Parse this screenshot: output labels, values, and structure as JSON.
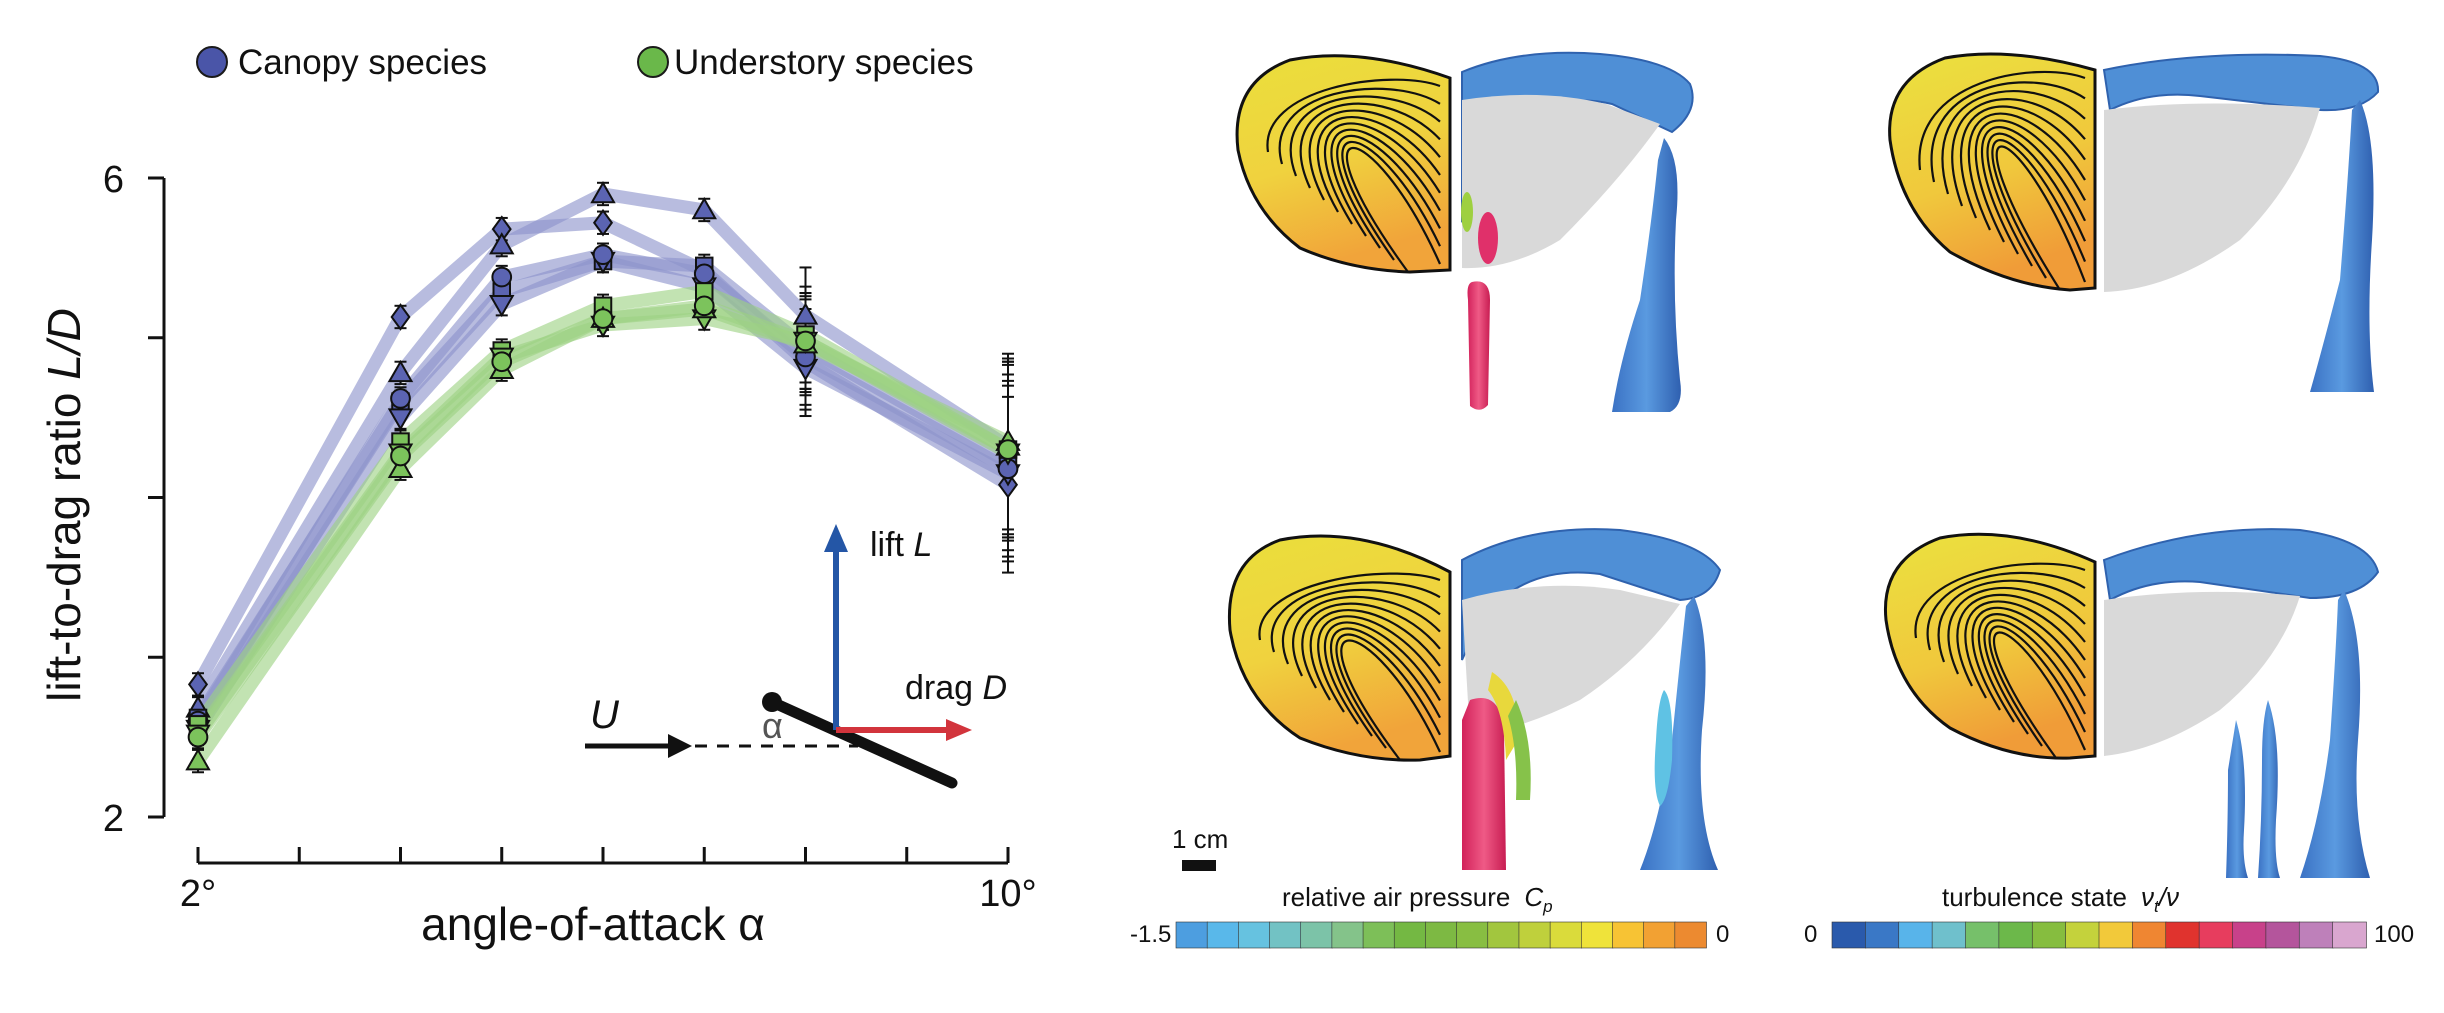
{
  "chart_data": {
    "type": "line",
    "title": "",
    "xlabel": "angle-of-attack α",
    "ylabel_main": "lift-to-drag ratio ",
    "ylabel_italic": "L/D",
    "x_ticks": [
      2,
      3,
      4,
      5,
      6,
      7,
      8,
      9,
      10
    ],
    "x_tick_labels": {
      "2": "2°",
      "10": "10°"
    },
    "y_ticks": [
      2,
      3,
      4,
      5,
      6
    ],
    "y_tick_labels": {
      "2": "2",
      "6": "6"
    },
    "xlim": [
      2,
      10
    ],
    "ylim": [
      2,
      6
    ],
    "grid": false,
    "legend": {
      "position": "top",
      "entries": [
        {
          "label": "Canopy species",
          "color": "#4a55a8"
        },
        {
          "label": "Understory species",
          "color": "#6ab84a"
        }
      ]
    },
    "x": [
      2,
      4,
      5,
      6,
      7,
      8,
      10
    ],
    "series": [
      {
        "group": "canopy",
        "marker": "diamond",
        "values": [
          2.83,
          5.13,
          5.68,
          5.72,
          5.42,
          4.85,
          4.08
        ]
      },
      {
        "group": "canopy",
        "marker": "triangle-up",
        "values": [
          2.68,
          4.78,
          5.58,
          5.9,
          5.8,
          5.14,
          4.32
        ]
      },
      {
        "group": "canopy",
        "marker": "square",
        "values": [
          2.62,
          4.6,
          5.29,
          5.48,
          5.45,
          4.94,
          4.22
        ]
      },
      {
        "group": "canopy",
        "marker": "triangle-down",
        "values": [
          2.55,
          4.5,
          5.21,
          5.48,
          5.32,
          4.81,
          4.15
        ]
      },
      {
        "group": "canopy",
        "marker": "circle",
        "values": [
          2.6,
          4.62,
          5.38,
          5.52,
          5.4,
          4.88,
          4.18
        ]
      },
      {
        "group": "understory",
        "marker": "square",
        "values": [
          2.58,
          4.35,
          4.92,
          5.2,
          5.29,
          5.02,
          4.3
        ]
      },
      {
        "group": "understory",
        "marker": "triangle-down",
        "values": [
          2.52,
          4.28,
          4.88,
          5.08,
          5.12,
          4.98,
          4.28
        ]
      },
      {
        "group": "understory",
        "marker": "triangle-up",
        "values": [
          2.35,
          4.18,
          4.8,
          5.12,
          5.18,
          4.96,
          4.35
        ]
      },
      {
        "group": "understory",
        "marker": "circle",
        "values": [
          2.5,
          4.26,
          4.85,
          5.12,
          5.2,
          4.98,
          4.3
        ]
      }
    ],
    "series_colors": {
      "canopy": "#8c93cc",
      "understory": "#9dd282"
    },
    "marker_colors": {
      "canopy": "#5b64b2",
      "understory": "#7cc35c"
    }
  },
  "inset": {
    "velocity_label": "U",
    "alpha_label": "α",
    "lift_prefix": "lift ",
    "lift_symbol": "L",
    "drag_prefix": "drag ",
    "drag_symbol": "D",
    "lift_color": "#2456a6",
    "drag_color": "#d2343c"
  },
  "scale_bar_label": "1 cm",
  "colorbar_pressure": {
    "title": "relative air pressure",
    "symbol": "C",
    "symbol_sub": "p",
    "min_label": "-1.5",
    "max_label": "0",
    "colors": [
      "#4d9ee0",
      "#59b8ea",
      "#66c2e0",
      "#72c2c4",
      "#7cc3a8",
      "#84c38a",
      "#7dbf58",
      "#74b843",
      "#7db943",
      "#88be42",
      "#a2c63e",
      "#bfd03c",
      "#dadb3b",
      "#efe33a",
      "#f7c334",
      "#f2a133",
      "#ec8a30"
    ]
  },
  "colorbar_turbulence": {
    "title": "turbulence state",
    "symbol": "ν",
    "symbol_sub": "t",
    "symbol_tail": "/ν",
    "min_label": "0",
    "max_label": "100",
    "colors": [
      "#2a5aac",
      "#3a78c6",
      "#58b4ea",
      "#6fc0cc",
      "#76c06a",
      "#6cb84a",
      "#86bd3f",
      "#c4d23c",
      "#f2c93a",
      "#ef8632",
      "#e0332e",
      "#e73d5e",
      "#c8418a",
      "#b4559c",
      "#be80ba",
      "#d9a6cf"
    ]
  }
}
